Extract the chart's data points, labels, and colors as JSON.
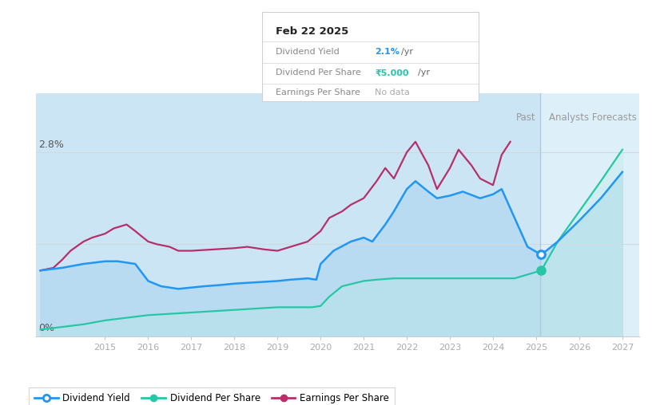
{
  "tooltip_date": "Feb 22 2025",
  "tooltip_yield_val": "2.1%",
  "tooltip_dps_val": "₹5.000",
  "tooltip_eps_val": "No data",
  "bg_color": "#ffffff",
  "past_bg": "#d6eaf8",
  "forecast_bg": "#e8f4fd",
  "colors": {
    "dividend_yield": "#2196f3",
    "dividend_per_share": "#26c6a6",
    "earnings_per_share": "#b5306a"
  },
  "div_yield_x": [
    2013.5,
    2014.0,
    2014.5,
    2015.0,
    2015.3,
    2015.7,
    2016.0,
    2016.3,
    2016.7,
    2017.0,
    2017.3,
    2017.7,
    2018.0,
    2018.5,
    2019.0,
    2019.3,
    2019.7,
    2019.9,
    2020.0,
    2020.3,
    2020.7,
    2021.0,
    2021.2,
    2021.5,
    2021.7,
    2022.0,
    2022.2,
    2022.5,
    2022.7,
    2023.0,
    2023.3,
    2023.7,
    2024.0,
    2024.2,
    2024.5,
    2024.8,
    2025.12,
    2025.5,
    2026.0,
    2026.5,
    2027.0
  ],
  "div_yield_y": [
    0.5,
    0.52,
    0.55,
    0.57,
    0.57,
    0.55,
    0.42,
    0.38,
    0.36,
    0.37,
    0.38,
    0.39,
    0.4,
    0.41,
    0.42,
    0.43,
    0.44,
    0.43,
    0.55,
    0.65,
    0.72,
    0.75,
    0.72,
    0.85,
    0.95,
    1.12,
    1.18,
    1.1,
    1.05,
    1.07,
    1.1,
    1.05,
    1.08,
    1.12,
    0.9,
    0.68,
    0.62,
    0.72,
    0.88,
    1.05,
    1.25
  ],
  "div_per_share_x": [
    2013.5,
    2014.0,
    2014.5,
    2015.0,
    2015.5,
    2016.0,
    2016.5,
    2017.0,
    2017.5,
    2018.0,
    2018.5,
    2019.0,
    2019.3,
    2019.5,
    2019.8,
    2020.0,
    2020.2,
    2020.5,
    2021.0,
    2021.3,
    2021.7,
    2022.0,
    2022.5,
    2023.0,
    2023.5,
    2024.0,
    2024.5,
    2025.12,
    2025.5,
    2026.0,
    2026.5,
    2027.0
  ],
  "div_per_share_y": [
    0.05,
    0.07,
    0.09,
    0.12,
    0.14,
    0.16,
    0.17,
    0.18,
    0.19,
    0.2,
    0.21,
    0.22,
    0.22,
    0.22,
    0.22,
    0.23,
    0.3,
    0.38,
    0.42,
    0.43,
    0.44,
    0.44,
    0.44,
    0.44,
    0.44,
    0.44,
    0.44,
    0.5,
    0.72,
    0.95,
    1.18,
    1.42
  ],
  "earnings_per_share_x": [
    2013.5,
    2013.8,
    2014.0,
    2014.2,
    2014.5,
    2014.7,
    2015.0,
    2015.2,
    2015.5,
    2015.7,
    2016.0,
    2016.2,
    2016.5,
    2016.7,
    2017.0,
    2017.5,
    2018.0,
    2018.3,
    2018.7,
    2019.0,
    2019.3,
    2019.7,
    2020.0,
    2020.2,
    2020.5,
    2020.7,
    2021.0,
    2021.3,
    2021.5,
    2021.7,
    2022.0,
    2022.2,
    2022.5,
    2022.7,
    2023.0,
    2023.2,
    2023.5,
    2023.7,
    2024.0,
    2024.2,
    2024.4
  ],
  "earnings_per_share_y": [
    0.5,
    0.52,
    0.58,
    0.65,
    0.72,
    0.75,
    0.78,
    0.82,
    0.85,
    0.8,
    0.72,
    0.7,
    0.68,
    0.65,
    0.65,
    0.66,
    0.67,
    0.68,
    0.66,
    0.65,
    0.68,
    0.72,
    0.8,
    0.9,
    0.95,
    1.0,
    1.05,
    1.18,
    1.28,
    1.2,
    1.4,
    1.48,
    1.3,
    1.12,
    1.28,
    1.42,
    1.3,
    1.2,
    1.15,
    1.38,
    1.48
  ],
  "highlight_dot_yield": [
    2025.12,
    0.62
  ],
  "highlight_dot_dps": [
    2025.12,
    0.5
  ],
  "cutoff": 2025.1,
  "xlim": [
    2013.4,
    2027.4
  ],
  "ylim": [
    0.0,
    1.85
  ],
  "xticks": [
    2015,
    2016,
    2017,
    2018,
    2019,
    2020,
    2021,
    2022,
    2023,
    2024,
    2025,
    2026,
    2027
  ],
  "y_2_8_pct": 1.4,
  "legend": [
    {
      "label": "Dividend Yield",
      "color": "#2196f3"
    },
    {
      "label": "Dividend Per Share",
      "color": "#26c6a6"
    },
    {
      "label": "Earnings Per Share",
      "color": "#b5306a"
    }
  ]
}
